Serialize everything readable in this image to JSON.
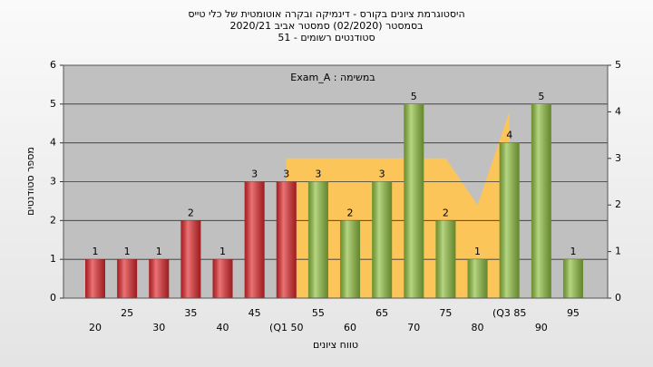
{
  "chart_data": {
    "type": "bar",
    "title_lines": [
      "היסטוגרמת ציונים בקורס - דינמיקה ובקרה אוטומטית של כלי טייס",
      "בסמסטר  (02/2020)  סמסטר אביב 2020/21",
      "סטודנטים רשומים - 51"
    ],
    "annotation": "במשימה : Exam_A",
    "xlabel": "טווח ציונים",
    "ylabel": "מספר סטודנטים",
    "categories": [
      "20",
      "25",
      "30",
      "35",
      "40",
      "45",
      "(Q1 50",
      "55",
      "60",
      "65",
      "70",
      "75",
      "80",
      "(Q3 85",
      "90",
      "95"
    ],
    "values": [
      1,
      1,
      1,
      2,
      1,
      3,
      3,
      3,
      2,
      3,
      5,
      2,
      1,
      4,
      5,
      1
    ],
    "colors": [
      "#e0282c",
      "#e0282c",
      "#e0282c",
      "#e0282c",
      "#e0282c",
      "#e0282c",
      "#e0282c",
      "#8fbf3f",
      "#8fbf3f",
      "#8fbf3f",
      "#8fbf3f",
      "#8fbf3f",
      "#8fbf3f",
      "#8fbf3f",
      "#8fbf3f",
      "#8fbf3f"
    ],
    "area": {
      "axis": "y2",
      "color": "#fcc55a",
      "values": [
        null,
        null,
        null,
        null,
        null,
        null,
        3,
        3,
        3,
        3,
        3,
        3,
        2,
        4,
        null,
        null
      ]
    },
    "ylim": [
      0,
      6
    ],
    "yticks": [
      0,
      1,
      2,
      3,
      4,
      5,
      6
    ],
    "y2lim": [
      0,
      5
    ],
    "y2ticks": [
      0,
      1,
      2,
      3,
      4,
      5
    ],
    "grid": true
  }
}
